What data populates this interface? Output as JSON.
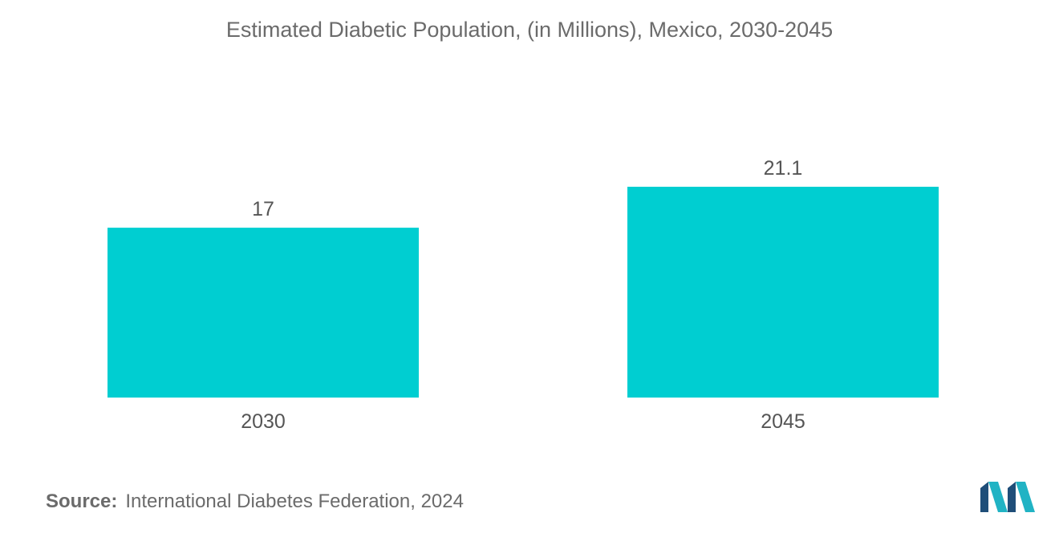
{
  "chart_data": {
    "type": "bar",
    "title": "Estimated Diabetic Population, (in Millions), Mexico, 2030-2045",
    "categories": [
      "2030",
      "2045"
    ],
    "values": [
      17,
      21.1
    ],
    "value_labels": [
      "17",
      "21.1"
    ],
    "xlabel": "",
    "ylabel": "",
    "ylim": [
      0,
      21.1
    ],
    "grid": false,
    "legend": "none",
    "bar_color": "#00ced1"
  },
  "source": {
    "label": "Source:",
    "text": "International Diabetes Federation, 2024"
  },
  "colors": {
    "text": "#6b6b6b",
    "logo_dark": "#1f4e79",
    "logo_teal": "#21b3c4"
  }
}
